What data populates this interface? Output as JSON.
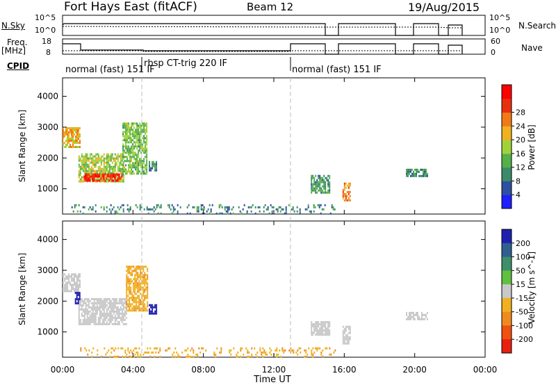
{
  "header": {
    "title": "Fort Hays East (fitACF)",
    "beam": "Beam 12",
    "date": "19/Aug/2015"
  },
  "top_panels": {
    "nsky_label": "N.Sky",
    "nsky_ticks": [
      "10^5",
      "10^0"
    ],
    "nsearch_label": "N.Search",
    "nsearch_ticks": [
      "10^5",
      "10^0"
    ],
    "freq_label": "Freq.",
    "freq_unit": "[MHz]",
    "freq_ticks": [
      "18",
      "8"
    ],
    "nave_label": "Nave",
    "nave_ticks": [
      "60",
      "0"
    ],
    "cpid_label": "CPID",
    "cpid_segments": [
      {
        "label": "normal (fast) 151 IF",
        "start_h": 0.0,
        "end_h": 4.5
      },
      {
        "label": "rbsp CT-trig 220 IF",
        "start_h": 4.5,
        "end_h": 13.0
      },
      {
        "label": "normal (fast) 151 IF",
        "start_h": 13.0,
        "end_h": 24.0
      }
    ]
  },
  "axes": {
    "xlabel": "Time UT",
    "xticks": [
      "00:00",
      "04:00",
      "08:00",
      "12:00",
      "16:00",
      "20:00",
      "00:00"
    ],
    "ylabel": "Slant Range [km]",
    "yticks": [
      "1000",
      "2000",
      "3000",
      "4000"
    ]
  },
  "colorbars": {
    "power": {
      "label": "Power [dB]",
      "ticks": [
        "4",
        "8",
        "12",
        "16",
        "20",
        "24",
        "28"
      ],
      "colors": [
        "#1f1fff",
        "#2f4fa0",
        "#3b8a6a",
        "#55b04a",
        "#9fd23a",
        "#f0b020",
        "#f07a18",
        "#e83010",
        "#ff0000"
      ]
    },
    "velocity": {
      "label": "Velocity [m s^-1]",
      "ticks": [
        "200",
        "100",
        "50",
        "15",
        "-15",
        "-50",
        "-100",
        "-200"
      ],
      "colors": [
        "#2020b0",
        "#2f6090",
        "#3f8f6a",
        "#60c040",
        "#c8c8c8",
        "#f0b020",
        "#f08a20",
        "#f05010",
        "#e82010"
      ]
    }
  },
  "chart_data": [
    {
      "type": "heatmap",
      "name": "Power",
      "x_range_hours": [
        0,
        24
      ],
      "y_range_km": [
        180,
        4600
      ],
      "value_range_db": [
        0,
        32
      ],
      "patches": [
        {
          "t0": 0.0,
          "t1": 1.0,
          "r0": 2350,
          "r1": 3000,
          "value": 20
        },
        {
          "t0": 0.9,
          "t1": 3.5,
          "r0": 1250,
          "r1": 2150,
          "value": 16
        },
        {
          "t0": 1.2,
          "t1": 3.4,
          "r0": 1280,
          "r1": 1500,
          "value": 28
        },
        {
          "t0": 3.4,
          "t1": 4.8,
          "r0": 1500,
          "r1": 3150,
          "value": 14
        },
        {
          "t0": 4.9,
          "t1": 5.3,
          "r0": 1600,
          "r1": 1900,
          "value": 8
        },
        {
          "t0": 14.1,
          "t1": 15.2,
          "r0": 900,
          "r1": 1450,
          "value": 10
        },
        {
          "t0": 15.9,
          "t1": 16.3,
          "r0": 600,
          "r1": 1200,
          "value": 22
        },
        {
          "t0": 19.5,
          "t1": 20.7,
          "r0": 1400,
          "r1": 1650,
          "value": 8
        },
        {
          "t0": 0.5,
          "t1": 15.5,
          "r0": 180,
          "r1": 500,
          "value": 8
        }
      ]
    },
    {
      "type": "heatmap",
      "name": "Velocity",
      "x_range_hours": [
        0,
        24
      ],
      "y_range_km": [
        180,
        4600
      ],
      "value_range_ms": [
        -250,
        250
      ],
      "patches": [
        {
          "t0": 0.0,
          "t1": 1.0,
          "r0": 2350,
          "r1": 2900,
          "value": 0
        },
        {
          "t0": 0.9,
          "t1": 3.6,
          "r0": 1250,
          "r1": 2100,
          "value": 0
        },
        {
          "t0": 0.7,
          "t1": 1.0,
          "r0": 1900,
          "r1": 2300,
          "value": 200
        },
        {
          "t0": 3.6,
          "t1": 4.8,
          "r0": 1700,
          "r1": 3150,
          "value": -40
        },
        {
          "t0": 4.9,
          "t1": 5.3,
          "r0": 1600,
          "r1": 1900,
          "value": 220
        },
        {
          "t0": 14.1,
          "t1": 15.2,
          "r0": 900,
          "r1": 1350,
          "value": 0
        },
        {
          "t0": 15.9,
          "t1": 16.3,
          "r0": 600,
          "r1": 1200,
          "value": 0
        },
        {
          "t0": 19.5,
          "t1": 20.7,
          "r0": 1400,
          "r1": 1650,
          "value": 0
        },
        {
          "t0": 1.0,
          "t1": 15.5,
          "r0": 180,
          "r1": 500,
          "value": -40
        }
      ]
    }
  ]
}
